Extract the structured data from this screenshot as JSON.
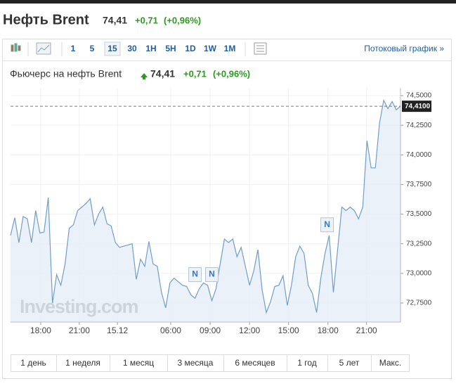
{
  "header": {
    "title": "Нефть Brent",
    "price": "74,41",
    "change": "+0,71",
    "change_pct": "(+0,96%)"
  },
  "toolbar": {
    "intervals": [
      "1",
      "5",
      "15",
      "30",
      "1H",
      "5H",
      "1D",
      "1W",
      "1M"
    ],
    "selected": "15",
    "link": "Потоковый график »"
  },
  "periods": [
    "1 день",
    "1 неделя",
    "1 месяц",
    "3 месяца",
    "6 месяцев",
    "1 год",
    "5 лет",
    "Макс."
  ],
  "chart_data": {
    "type": "line",
    "subtitle": {
      "name": "Фьючерс на нефть Brent",
      "price": "74,41",
      "change": "+0,71",
      "change_pct": "(+0,96%)"
    },
    "watermark": "Investing.com",
    "x": [
      0,
      1,
      2,
      3,
      4,
      5,
      6,
      7,
      8,
      9,
      10,
      11,
      12,
      13,
      14,
      15,
      16,
      17,
      18,
      19,
      20,
      21,
      22,
      23,
      24,
      25,
      26,
      27,
      28,
      29,
      30,
      31,
      32,
      33,
      34,
      35,
      36,
      37,
      38,
      39,
      40,
      41,
      42,
      43,
      44,
      45,
      46,
      47,
      48,
      49,
      50,
      51,
      52,
      53,
      54,
      55,
      56,
      57,
      58,
      59,
      60,
      61,
      62,
      63,
      64,
      65,
      66,
      67,
      68,
      69,
      70,
      71,
      72,
      73,
      74,
      75,
      76,
      77,
      78,
      79,
      80,
      81,
      82,
      83,
      84,
      85,
      86,
      87,
      88,
      89,
      90,
      91,
      92,
      93
    ],
    "series": [
      {
        "name": "Brent",
        "color": "#6f9fc8",
        "values": [
          73.32,
          73.47,
          73.26,
          73.48,
          73.46,
          73.26,
          73.53,
          73.34,
          73.35,
          73.64,
          72.75,
          72.99,
          72.9,
          73.08,
          73.38,
          73.41,
          73.53,
          73.56,
          73.59,
          73.63,
          73.41,
          73.5,
          73.56,
          73.42,
          73.4,
          73.26,
          73.22,
          73.23,
          73.24,
          73.25,
          72.95,
          73.12,
          73.06,
          73.27,
          73.08,
          73.06,
          72.84,
          72.71,
          72.92,
          72.96,
          72.93,
          72.9,
          72.89,
          72.82,
          72.79,
          72.87,
          72.92,
          72.9,
          72.77,
          72.87,
          73.08,
          73.29,
          73.26,
          73.29,
          73.14,
          73.22,
          73.06,
          72.9,
          73.02,
          73.2,
          72.86,
          72.67,
          72.76,
          72.89,
          72.9,
          72.98,
          72.73,
          72.9,
          73.14,
          73.23,
          73.17,
          72.9,
          72.83,
          72.67,
          72.96,
          73.17,
          73.32,
          72.84,
          73.2,
          73.56,
          73.53,
          73.56,
          73.53,
          73.46,
          73.56,
          74.12,
          73.89,
          73.89,
          74.27,
          74.46,
          74.39,
          74.45,
          74.38,
          74.41
        ]
      }
    ],
    "xlim": [
      0,
      93
    ],
    "xticks": [
      {
        "value": 7.2,
        "label": "18:00"
      },
      {
        "value": 16.4,
        "label": "21:00"
      },
      {
        "value": 25.5,
        "label": "15.12"
      },
      {
        "value": 38.2,
        "label": "06:00"
      },
      {
        "value": 47.6,
        "label": "09:00"
      },
      {
        "value": 57,
        "label": "12:00"
      },
      {
        "value": 66.3,
        "label": "15:00"
      },
      {
        "value": 75.7,
        "label": "18:00"
      },
      {
        "value": 84.9,
        "label": "21:00"
      }
    ],
    "ylim": [
      72.59,
      74.565
    ],
    "yticks": [
      {
        "value": 72.75,
        "label": "72,7500"
      },
      {
        "value": 73,
        "label": "73,0000"
      },
      {
        "value": 73.25,
        "label": "73,2500"
      },
      {
        "value": 73.5,
        "label": "73,5000"
      },
      {
        "value": 73.75,
        "label": "73,7500"
      },
      {
        "value": 74,
        "label": "74,0000"
      },
      {
        "value": 74.25,
        "label": "74,2500"
      },
      {
        "value": 74.5,
        "label": "74,5000"
      }
    ],
    "last_price": {
      "value": 74.41,
      "label": "74,4100"
    },
    "annotations": [
      {
        "x": 44,
        "text": "N"
      },
      {
        "x": 48,
        "text": "N"
      },
      {
        "x": 75.5,
        "text": "N"
      }
    ],
    "grid": true
  }
}
